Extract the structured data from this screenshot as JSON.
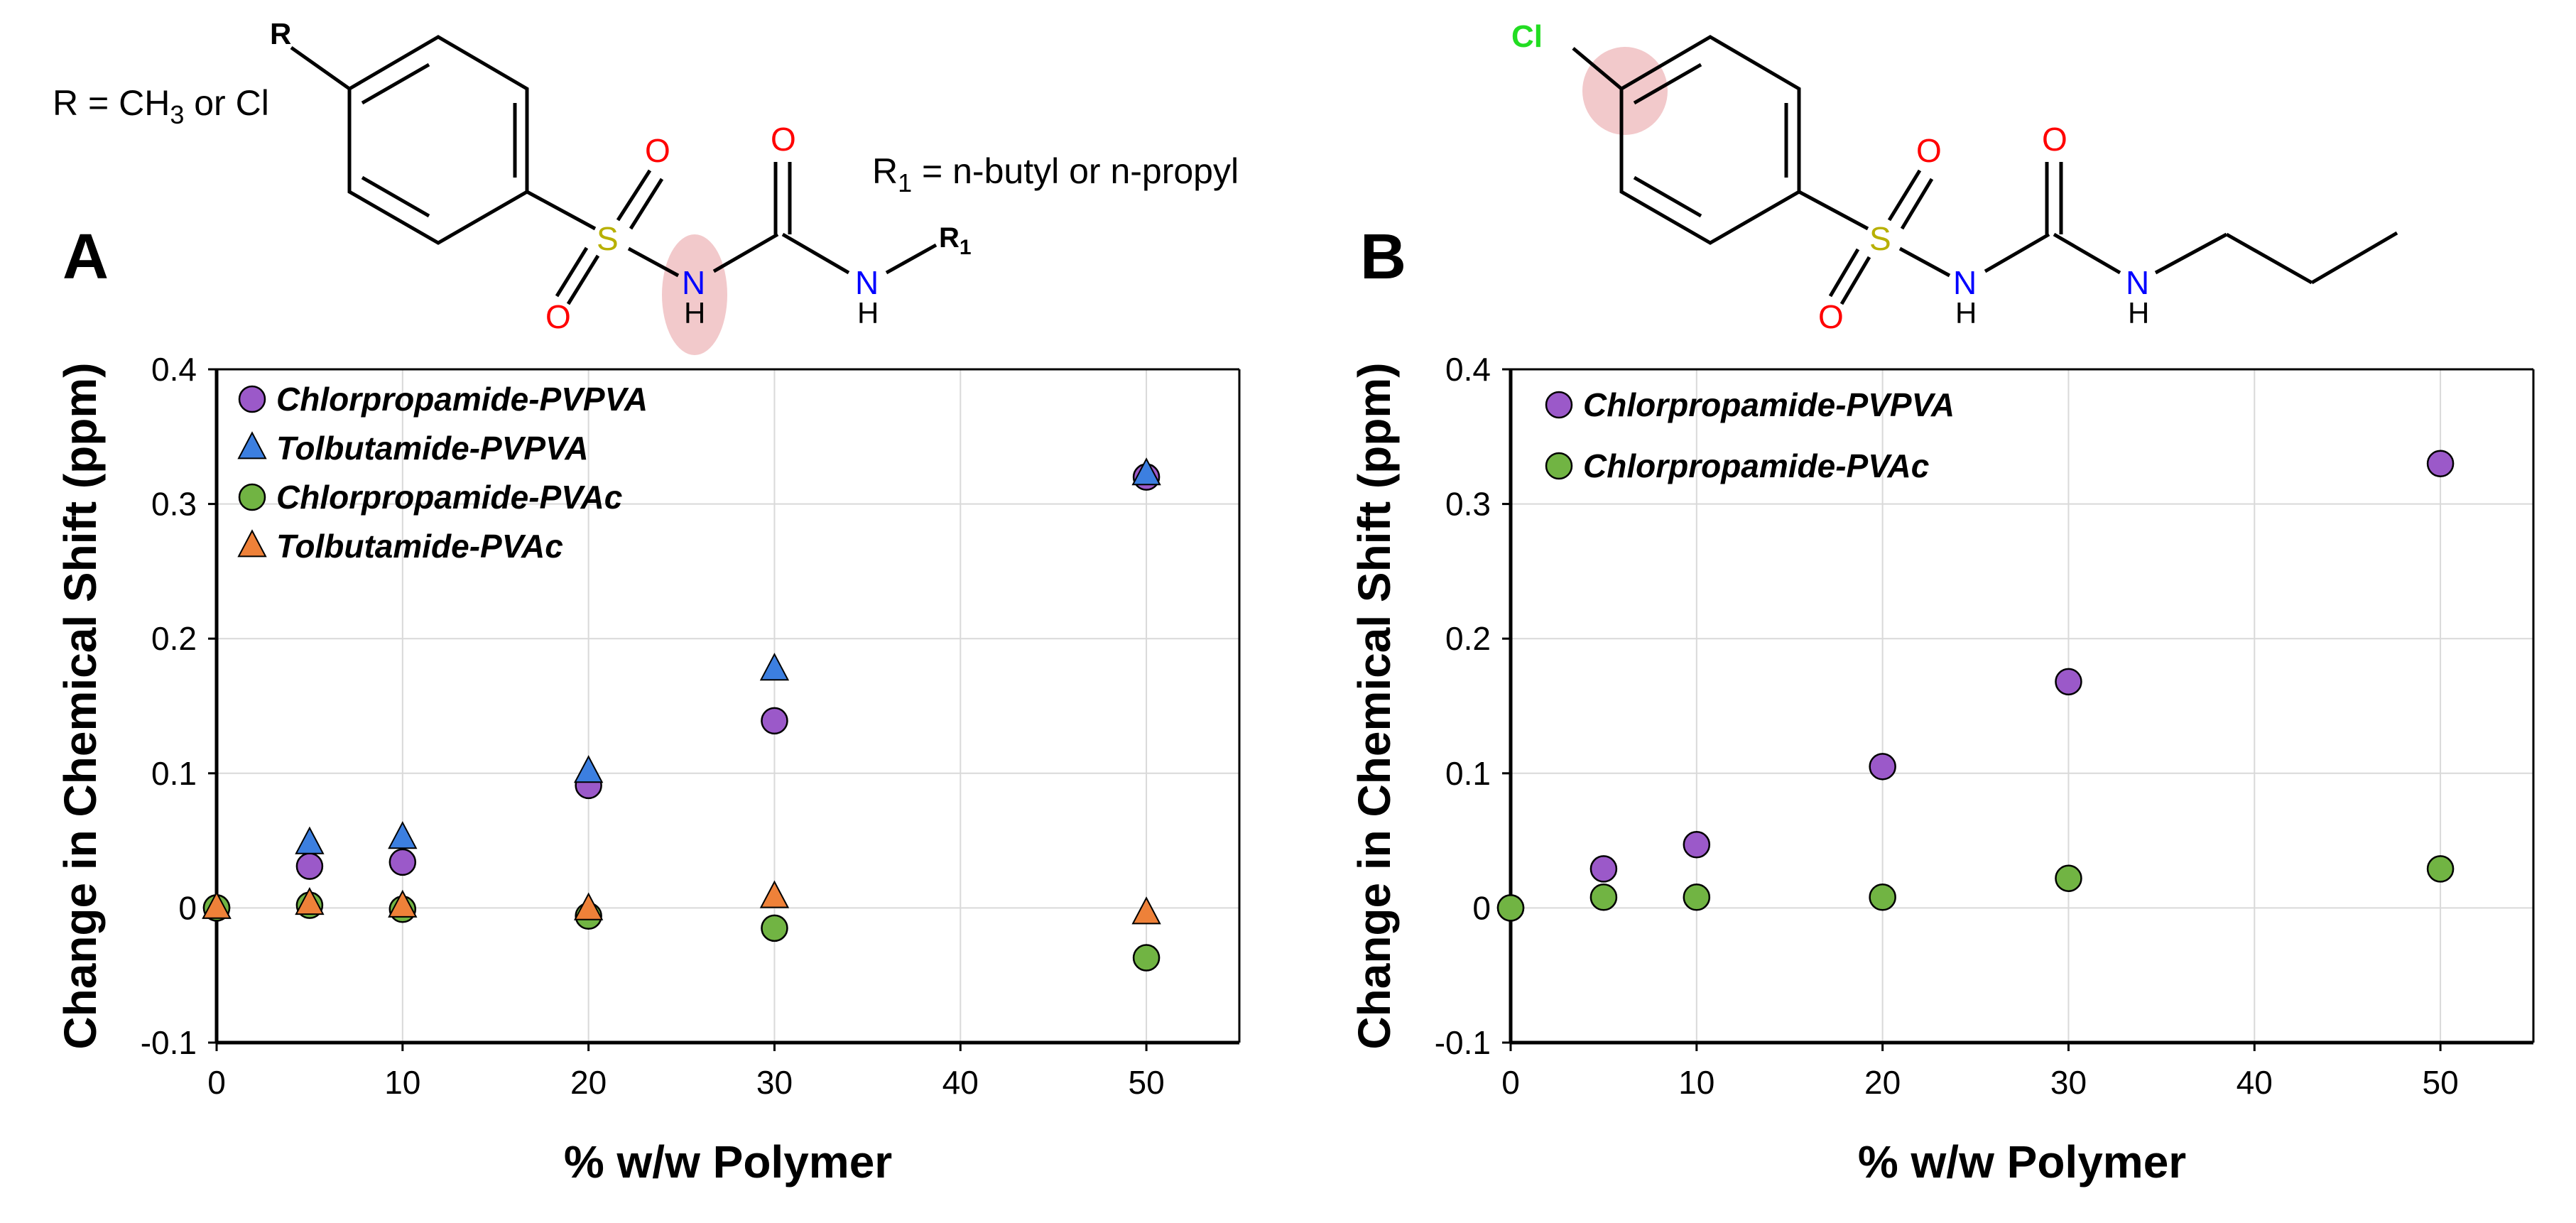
{
  "panels": {
    "A": {
      "letter": "A",
      "r_definition_prefix": "R = CH",
      "r_definition_sub": "3",
      "r_definition_suffix": " or Cl",
      "r1_definition_prefix": "R",
      "r1_definition_sub": "1",
      "r1_definition_suffix": " = n-butyl or n-propyl",
      "struct_labels": {
        "R": "R",
        "S": "S",
        "O": "O",
        "N": "N",
        "H": "H",
        "R1": "R",
        "R1_sub": "1"
      }
    },
    "B": {
      "letter": "B",
      "struct_labels": {
        "Cl": "Cl",
        "S": "S",
        "O": "O",
        "N": "N",
        "H": "H"
      }
    }
  },
  "colors": {
    "purple": "#9B59C9",
    "blue": "#3C7FE0",
    "green": "#71B443",
    "orange": "#EE8139",
    "atom_S": "#B8B000",
    "atom_O": "#FF0000",
    "atom_N": "#0000FF",
    "atom_Cl": "#22DD22",
    "highlight": "#F2C9CB"
  },
  "chart_data": [
    {
      "panel": "A",
      "type": "scatter",
      "xlabel": "% w/w Polymer",
      "ylabel": "Change in Chemical Shift (ppm)",
      "xlim": [
        0,
        55
      ],
      "ylim": [
        -0.1,
        0.4
      ],
      "xticks": [
        "0",
        "10",
        "20",
        "30",
        "40",
        "50"
      ],
      "yticks": [
        "-0.1",
        "0",
        "0.1",
        "0.2",
        "0.3",
        "0.4"
      ],
      "grid": true,
      "legend_position": "top-left",
      "series": [
        {
          "name": "Chlorpropamide-PVPVA",
          "marker": "circle",
          "color": "#9B59C9",
          "points": [
            [
              0,
              0
            ],
            [
              5,
              0.031
            ],
            [
              10,
              0.034
            ],
            [
              20,
              0.091
            ],
            [
              30,
              0.139
            ],
            [
              50,
              0.32
            ]
          ]
        },
        {
          "name": "Tolbutamide-PVPVA",
          "marker": "triangle",
          "color": "#3C7FE0",
          "points": [
            [
              0,
              0
            ],
            [
              5,
              0.048
            ],
            [
              10,
              0.052
            ],
            [
              20,
              0.101
            ],
            [
              30,
              0.177
            ],
            [
              50,
              0.322
            ]
          ]
        },
        {
          "name": "Chlorpropamide-PVAc",
          "marker": "circle",
          "color": "#71B443",
          "points": [
            [
              0,
              0
            ],
            [
              5,
              0.002
            ],
            [
              10,
              -0.001
            ],
            [
              20,
              -0.006
            ],
            [
              30,
              -0.015
            ],
            [
              50,
              -0.037
            ]
          ]
        },
        {
          "name": "Tolbutamide-PVAc",
          "marker": "triangle",
          "color": "#EE8139",
          "points": [
            [
              0,
              0
            ],
            [
              5,
              0.003
            ],
            [
              10,
              0.001
            ],
            [
              20,
              -0.001
            ],
            [
              30,
              0.008
            ],
            [
              50,
              -0.004
            ]
          ]
        }
      ]
    },
    {
      "panel": "B",
      "type": "scatter",
      "xlabel": "% w/w Polymer",
      "ylabel": "Change in Chemical Shift (ppm)",
      "xlim": [
        0,
        55
      ],
      "ylim": [
        -0.1,
        0.4
      ],
      "xticks": [
        "0",
        "10",
        "20",
        "30",
        "40",
        "50"
      ],
      "yticks": [
        "-0.1",
        "0",
        "0.1",
        "0.2",
        "0.3",
        "0.4"
      ],
      "grid": true,
      "legend_position": "top-left",
      "series": [
        {
          "name": "Chlorpropamide-PVPVA",
          "marker": "circle",
          "color": "#9B59C9",
          "points": [
            [
              0,
              0
            ],
            [
              5,
              0.029
            ],
            [
              10,
              0.047
            ],
            [
              20,
              0.105
            ],
            [
              30,
              0.168
            ],
            [
              50,
              0.33
            ]
          ]
        },
        {
          "name": "Chlorpropamide-PVAc",
          "marker": "circle",
          "color": "#71B443",
          "points": [
            [
              0,
              0
            ],
            [
              5,
              0.008
            ],
            [
              10,
              0.008
            ],
            [
              20,
              0.008
            ],
            [
              30,
              0.022
            ],
            [
              50,
              0.029
            ]
          ]
        }
      ]
    }
  ]
}
